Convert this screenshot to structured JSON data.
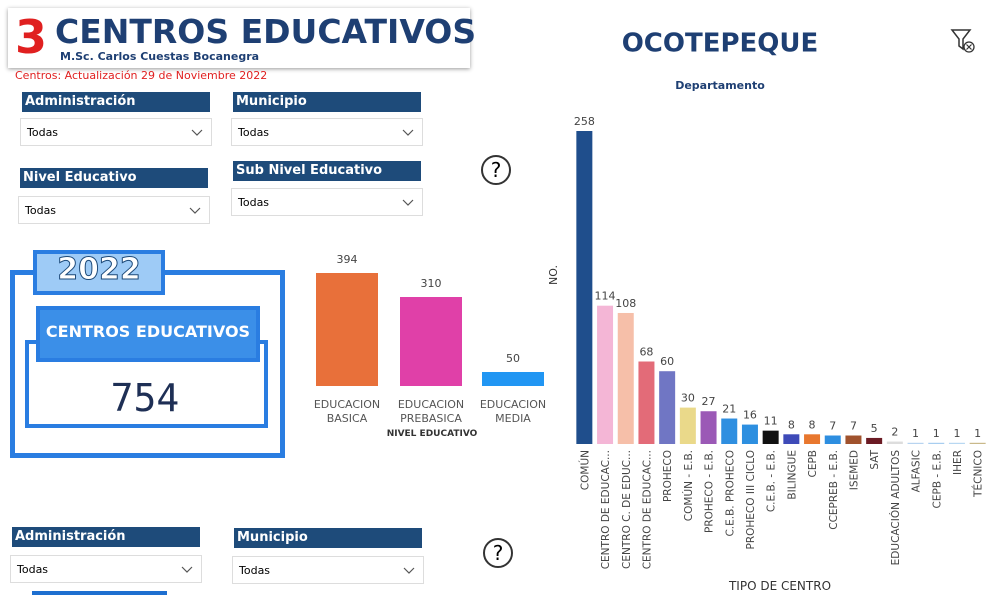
{
  "header": {
    "number": "3",
    "title": "CENTROS EDUCATIVOS",
    "author": "M.Sc. Carlos Cuestas Bocanegra",
    "update": "Centros: Actualización 29 de Noviembre 2022"
  },
  "filters": [
    {
      "label": "Administración",
      "value": "Todas"
    },
    {
      "label": "Municipio",
      "value": "Todas"
    },
    {
      "label": "Nivel Educativo",
      "value": "Todas"
    },
    {
      "label": "Sub Nivel Educativo",
      "value": "Todas"
    },
    {
      "label": "Administración",
      "value": "Todas"
    },
    {
      "label": "Municipio",
      "value": "Todas"
    }
  ],
  "kpi": {
    "year": "2022",
    "label": "CENTROS EDUCATIVOS",
    "value": "754"
  },
  "chart_data": [
    {
      "type": "bar",
      "categories": [
        "EDUCACION BASICA",
        "EDUCACION PREBASICA",
        "EDUCACION MEDIA"
      ],
      "values": [
        394,
        310,
        50
      ],
      "colors": [
        "#e8703a",
        "#e040a8",
        "#2196f3"
      ],
      "x_label": "NIVEL EDUCATIVO"
    },
    {
      "type": "bar",
      "title": "OCOTEPEQUE",
      "subtitle": "Departamento",
      "y_label": "NO.",
      "x_label": "TIPO DE CENTRO",
      "categories": [
        "COMÚN",
        "CENTRO DE EDUCAC...",
        "CENTRO C. DE EDUC...",
        "CENTRO DE EDUCAC...",
        "PROHECO",
        "COMÚN - E.B.",
        "PROHECO - E.B.",
        "C.E.B. PROHECO",
        "PROHECO III CICLO",
        "C.E.B. - E.B.",
        "BILINGUE",
        "CEPB",
        "CCEPREB - E.B.",
        "ISEMED",
        "SAT",
        "EDUCACIÓN ADULTOS",
        "ALFASIC",
        "CEPB - E.B.",
        "IHER",
        "TÉCNICO"
      ],
      "values": [
        258,
        114,
        108,
        68,
        60,
        30,
        27,
        21,
        16,
        11,
        8,
        8,
        7,
        7,
        5,
        2,
        1,
        1,
        1,
        1
      ],
      "colors": [
        "#1f4e8c",
        "#f4b6d6",
        "#f6bfa9",
        "#e36b78",
        "#7076c4",
        "#ead98a",
        "#9b59b6",
        "#2f8fe0",
        "#2d8fe0",
        "#111111",
        "#3e4ab8",
        "#e8772e",
        "#2d8ee0",
        "#a0522d",
        "#6b1b24",
        "#dddddd",
        "#b8d4f0",
        "#a8cef0",
        "#b8d8f2",
        "#c9b98a"
      ]
    }
  ]
}
